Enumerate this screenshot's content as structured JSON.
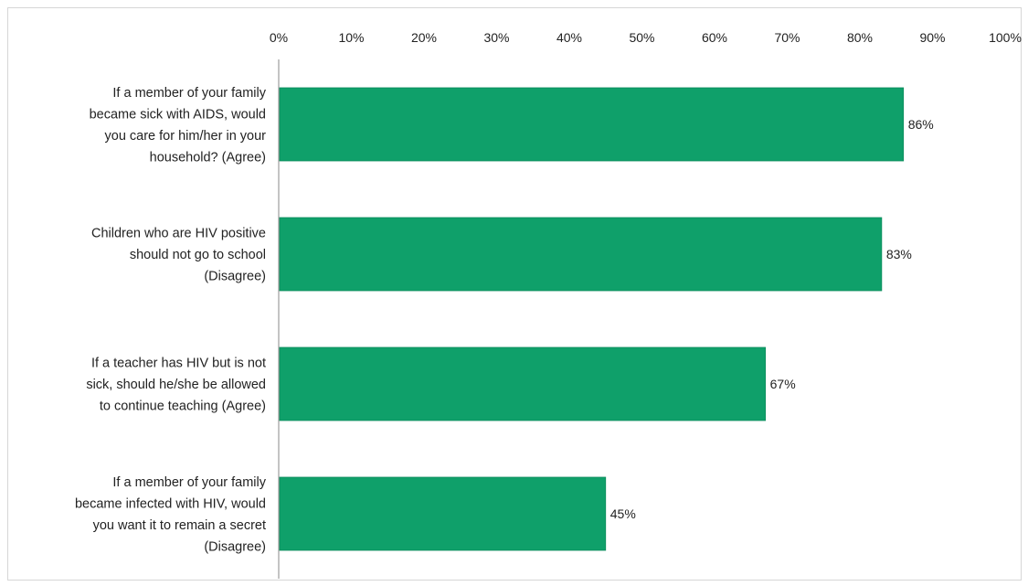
{
  "chart_data": {
    "type": "bar",
    "orientation": "horizontal",
    "title": "",
    "xlabel": "",
    "ylabel": "",
    "xlim": [
      0,
      100
    ],
    "x_ticks": [
      "0%",
      "10%",
      "20%",
      "30%",
      "40%",
      "50%",
      "60%",
      "70%",
      "80%",
      "90%",
      "100%"
    ],
    "x_axis_position": "top",
    "grid": false,
    "legend": "none",
    "bar_color": "#0fa06a",
    "categories": [
      [
        "If a member of your family",
        "became sick with AIDS, would",
        "you care for him/her in your",
        "household? (Agree)"
      ],
      [
        "Children who are HIV positive",
        "should not go to school",
        "(Disagree)"
      ],
      [
        "If a teacher has HIV but is not",
        "sick, should he/she be allowed",
        "to continue teaching (Agree)"
      ],
      [
        "If a member of your family",
        "became infected with HIV, would",
        "you want it to remain a secret",
        "(Disagree)"
      ]
    ],
    "values": [
      86,
      83,
      67,
      45
    ],
    "value_labels": [
      "86%",
      "83%",
      "67%",
      "45%"
    ]
  }
}
